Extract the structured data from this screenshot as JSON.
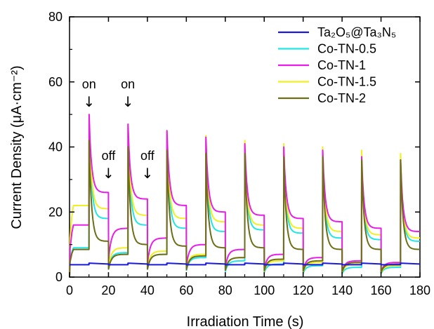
{
  "chart_data": {
    "type": "line",
    "title": "",
    "xlabel": "Irradiation Time (s)",
    "ylabel": "Current Density (μA·cm⁻²)",
    "xlim": [
      0,
      180
    ],
    "ylim": [
      0,
      80
    ],
    "xticks": [
      0,
      20,
      40,
      60,
      80,
      100,
      120,
      140,
      160,
      180
    ],
    "yticks": [
      0,
      20,
      40,
      60,
      80
    ],
    "grid": false,
    "legend_position": "top-right",
    "series": [
      {
        "name": "Ta₂O₅@Ta₃N₅",
        "color": "#1a1ad8",
        "on": 4.2,
        "dark": 3.8,
        "peak": 4.3,
        "end": 4.0,
        "fade": []
      },
      {
        "name": "Co-TN-0.5",
        "color": "#21e6e6",
        "on": 9,
        "dark": 8,
        "peak": [
          48,
          46,
          44,
          42,
          40,
          38,
          37,
          36,
          36,
          35
        ],
        "end": [
          18,
          16,
          15,
          14,
          14.5,
          13.5,
          12,
          11.5,
          11,
          10.5
        ],
        "fade": [
          7.5,
          7,
          6,
          5,
          4,
          3.5,
          3,
          3,
          3
        ]
      },
      {
        "name": "Co-TN-1",
        "color": "#e61ee6",
        "on": 16,
        "dark": 14,
        "peak": [
          50,
          47,
          45,
          43,
          41,
          40,
          39,
          37,
          36,
          35
        ],
        "end": [
          26,
          24,
          22,
          20,
          19,
          18,
          17,
          15,
          14,
          13
        ],
        "fade": [
          15,
          12,
          10,
          8.5,
          7,
          6,
          5,
          4.5,
          4
        ]
      },
      {
        "name": "Co-TN-1.5",
        "color": "#f0f01e",
        "on": 22,
        "dark": 9,
        "peak": [
          49,
          47,
          45,
          43.5,
          42,
          41,
          40,
          39,
          38,
          37.5
        ],
        "end": [
          21,
          19,
          18,
          17,
          16,
          15,
          14,
          13,
          12,
          11.5
        ],
        "fade": [
          9,
          8,
          7,
          6,
          5,
          4.5,
          4,
          3.5,
          3
        ]
      },
      {
        "name": "Co-TN-2",
        "color": "#6e6e19",
        "on": 8.5,
        "dark": 7.5,
        "peak": [
          42,
          40,
          39,
          38,
          38,
          37,
          37,
          36,
          36,
          36
        ],
        "end": [
          11,
          10,
          9.5,
          9,
          9,
          8.5,
          8.5,
          8.5,
          8.5,
          8.5
        ],
        "fade": [
          7,
          7,
          6.5,
          6,
          5.5,
          5,
          4.5,
          4,
          4
        ]
      }
    ],
    "annotations": [
      {
        "text": "on",
        "x": 10,
        "y": 58
      },
      {
        "text": "on",
        "x": 30,
        "y": 58
      },
      {
        "text": "off",
        "x": 20,
        "y": 36
      },
      {
        "text": "off",
        "x": 40,
        "y": 36
      }
    ],
    "arrow_glyph": "↓"
  }
}
